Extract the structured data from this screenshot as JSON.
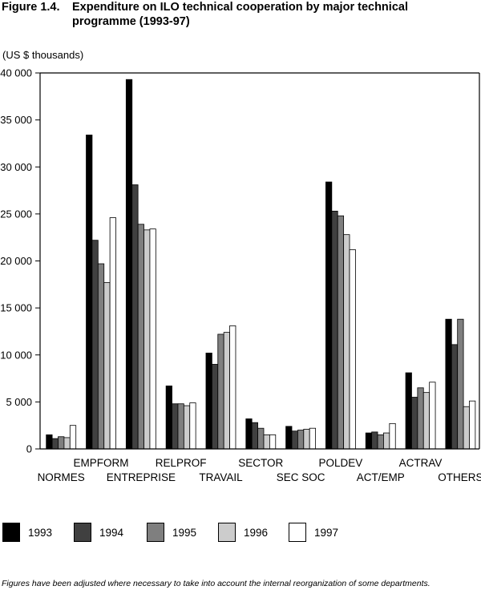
{
  "figure": {
    "label": "Figure 1.4.",
    "title": "Expenditure on ILO technical cooperation by major technical programme (1993-97)",
    "unit": "(US $ thousands)",
    "note": "Figures have been adjusted where necessary to take into account the internal reorganization of some departments."
  },
  "colors": {
    "1993": "#000000",
    "1994": "#404040",
    "1995": "#7f7f7f",
    "1996": "#cccccc",
    "1997": "#ffffff"
  },
  "chart_data": {
    "type": "bar",
    "title": "Expenditure on ILO technical cooperation by major technical programme (1993-97)",
    "ylabel": "(US $ thousands)",
    "xlabel": "",
    "ylim": [
      0,
      40000
    ],
    "yticks": [
      0,
      5000,
      10000,
      15000,
      20000,
      25000,
      30000,
      35000,
      40000
    ],
    "ytick_labels": [
      "0",
      "5 000",
      "10 000",
      "15 000",
      "20 000",
      "25 000",
      "30 000",
      "35 000",
      "40 000"
    ],
    "categories": [
      "NORMES",
      "EMPFORM",
      "ENTREPRISE",
      "RELPROF",
      "TRAVAIL",
      "SECTOR",
      "SEC SOC",
      "POLDEV",
      "ACT/EMP",
      "ACTRAV",
      "OTHERS"
    ],
    "legend_position": "bottom",
    "grid": false,
    "series": [
      {
        "name": "1993",
        "values": [
          1500,
          33400,
          39300,
          6700,
          10200,
          3200,
          2400,
          28400,
          1700,
          8100,
          13800
        ]
      },
      {
        "name": "1994",
        "values": [
          1100,
          22200,
          28100,
          4800,
          9000,
          2800,
          1900,
          25300,
          1800,
          5500,
          11100
        ]
      },
      {
        "name": "1995",
        "values": [
          1300,
          19700,
          23900,
          4800,
          12200,
          2200,
          2000,
          24800,
          1500,
          6500,
          13800
        ]
      },
      {
        "name": "1996",
        "values": [
          1200,
          17700,
          23300,
          4600,
          12400,
          1500,
          2100,
          22800,
          1700,
          6000,
          4500
        ]
      },
      {
        "name": "1997",
        "values": [
          2500,
          24600,
          23400,
          4900,
          13100,
          1500,
          2200,
          21200,
          2700,
          7100,
          5100
        ]
      }
    ]
  }
}
